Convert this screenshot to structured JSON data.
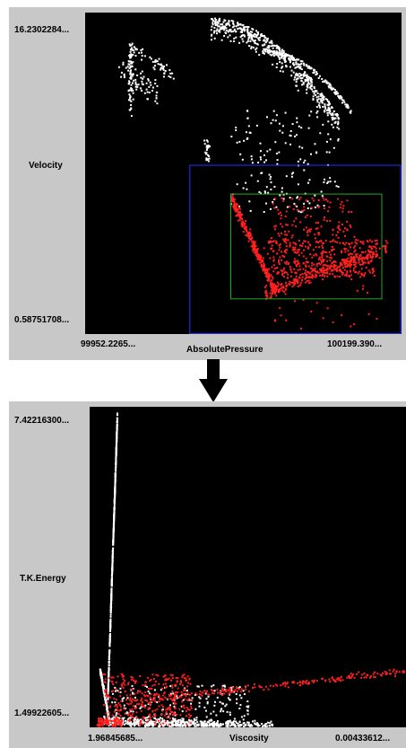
{
  "chart_data": [
    {
      "type": "scatter",
      "xlabel": "AbsolutePressure",
      "ylabel": "Velocity",
      "x_min_label": "99952.2265...",
      "x_max_label": "100199.390...",
      "y_max_label": "16.2302284...",
      "y_min_label": "0.58751708...",
      "xlim": [
        99952.2265,
        100199.39
      ],
      "ylim": [
        0.58751708,
        16.2302284
      ],
      "background": "#000000",
      "colors": {
        "unselected": "#ffffff",
        "selected": "#ff2020",
        "outer_box": "#2233ff",
        "inner_box": "#22aa22"
      },
      "selection_boxes": [
        {
          "name": "outer",
          "x_range": [
            100034,
            100199.39
          ],
          "y_range": [
            0.58751708,
            8.8
          ]
        },
        {
          "name": "inner",
          "x_range": [
            100066,
            100184
          ],
          "y_range": [
            2.3,
            7.4
          ]
        }
      ],
      "point_clusters": [
        {
          "kind": "diagonal",
          "x_range": [
            99978,
            100008
          ],
          "y_range": [
            13.6,
            12.3
          ],
          "spread_y": 0.8,
          "count": 60,
          "selected": false
        },
        {
          "kind": "spike",
          "x_center": 99987,
          "spread_x": 3,
          "y_range": [
            11.2,
            14.8
          ],
          "count": 70,
          "selected": false
        },
        {
          "kind": "diagonal",
          "x_range": [
            99989,
            100021
          ],
          "y_range": [
            14.5,
            13.2
          ],
          "spread_y": 0.5,
          "count": 50,
          "selected": false
        },
        {
          "kind": "arc",
          "x_range": [
            100050,
            100150
          ],
          "y_range": [
            16.0,
            11.2
          ],
          "spread_y": 1.4,
          "count": 520,
          "selected": false
        },
        {
          "kind": "arc",
          "x_range": [
            100090,
            100160
          ],
          "y_range": [
            14.5,
            11.5
          ],
          "spread_y": 0.4,
          "count": 160,
          "selected": false
        },
        {
          "kind": "spike",
          "x_center": 100047,
          "spread_x": 4,
          "y_range": [
            9.0,
            10.2
          ],
          "count": 25,
          "selected": false
        },
        {
          "kind": "blob",
          "x_range": [
            100065,
            100150
          ],
          "y_range": [
            6.5,
            11.5
          ],
          "count": 170,
          "selected": false
        },
        {
          "kind": "blob",
          "x_range": [
            100090,
            100180
          ],
          "y_range": [
            0.8,
            6.0
          ],
          "count": 60,
          "selected": true
        },
        {
          "kind": "diagonal",
          "x_range": [
            100066,
            100101
          ],
          "y_range": [
            7.2,
            2.6
          ],
          "spread_y": 0.45,
          "count": 320,
          "selected": true
        },
        {
          "kind": "diagonal",
          "x_range": [
            100092,
            100188
          ],
          "y_range": [
            2.6,
            4.8
          ],
          "spread_y": 0.5,
          "count": 260,
          "selected": true
        },
        {
          "kind": "blob",
          "x_range": [
            100094,
            100180
          ],
          "y_range": [
            3.4,
            5.2
          ],
          "count": 360,
          "selected": true
        },
        {
          "kind": "blob",
          "x_range": [
            100098,
            100160
          ],
          "y_range": [
            5.0,
            7.3
          ],
          "count": 120,
          "selected": true
        }
      ]
    },
    {
      "type": "scatter",
      "xlabel": "Viscosity",
      "ylabel": "T.K.Energy",
      "x_min_label": "1.96845685...",
      "x_max_label": "0.00433612...",
      "y_max_label": "7.42216300...",
      "y_min_label": "1.49922605...",
      "xlim": [
        0,
        1
      ],
      "ylim": [
        1.49922605,
        7.422163
      ],
      "background": "#000000",
      "colors": {
        "unselected": "#ffffff",
        "selected": "#ff2020"
      },
      "point_clusters": [
        {
          "kind": "diagonal",
          "x_range": [
            0.055,
            0.085
          ],
          "y_range": [
            2.05,
            7.25
          ],
          "spread_y": 0.12,
          "count": 520,
          "selected": false
        },
        {
          "kind": "diagonal",
          "x_range": [
            0.03,
            0.06
          ],
          "y_range": [
            2.6,
            1.62
          ],
          "spread_y": 0.1,
          "count": 160,
          "selected": false
        },
        {
          "kind": "diagonal",
          "x_range": [
            0.04,
            0.58
          ],
          "y_range": [
            1.62,
            1.52
          ],
          "spread_y": 0.14,
          "count": 700,
          "selected": false
        },
        {
          "kind": "blob",
          "x_range": [
            0.05,
            0.5
          ],
          "y_range": [
            1.55,
            2.3
          ],
          "count": 200,
          "selected": false
        },
        {
          "kind": "blob",
          "x_range": [
            0.04,
            0.32
          ],
          "y_range": [
            1.55,
            2.5
          ],
          "count": 320,
          "selected": true
        },
        {
          "kind": "diagonal",
          "x_range": [
            0.12,
            1.0
          ],
          "y_range": [
            2.0,
            2.55
          ],
          "spread_y": 0.1,
          "count": 210,
          "selected": true
        },
        {
          "kind": "blob",
          "x_range": [
            0.02,
            0.1
          ],
          "y_range": [
            1.52,
            1.68
          ],
          "count": 90,
          "selected": true
        }
      ]
    }
  ]
}
